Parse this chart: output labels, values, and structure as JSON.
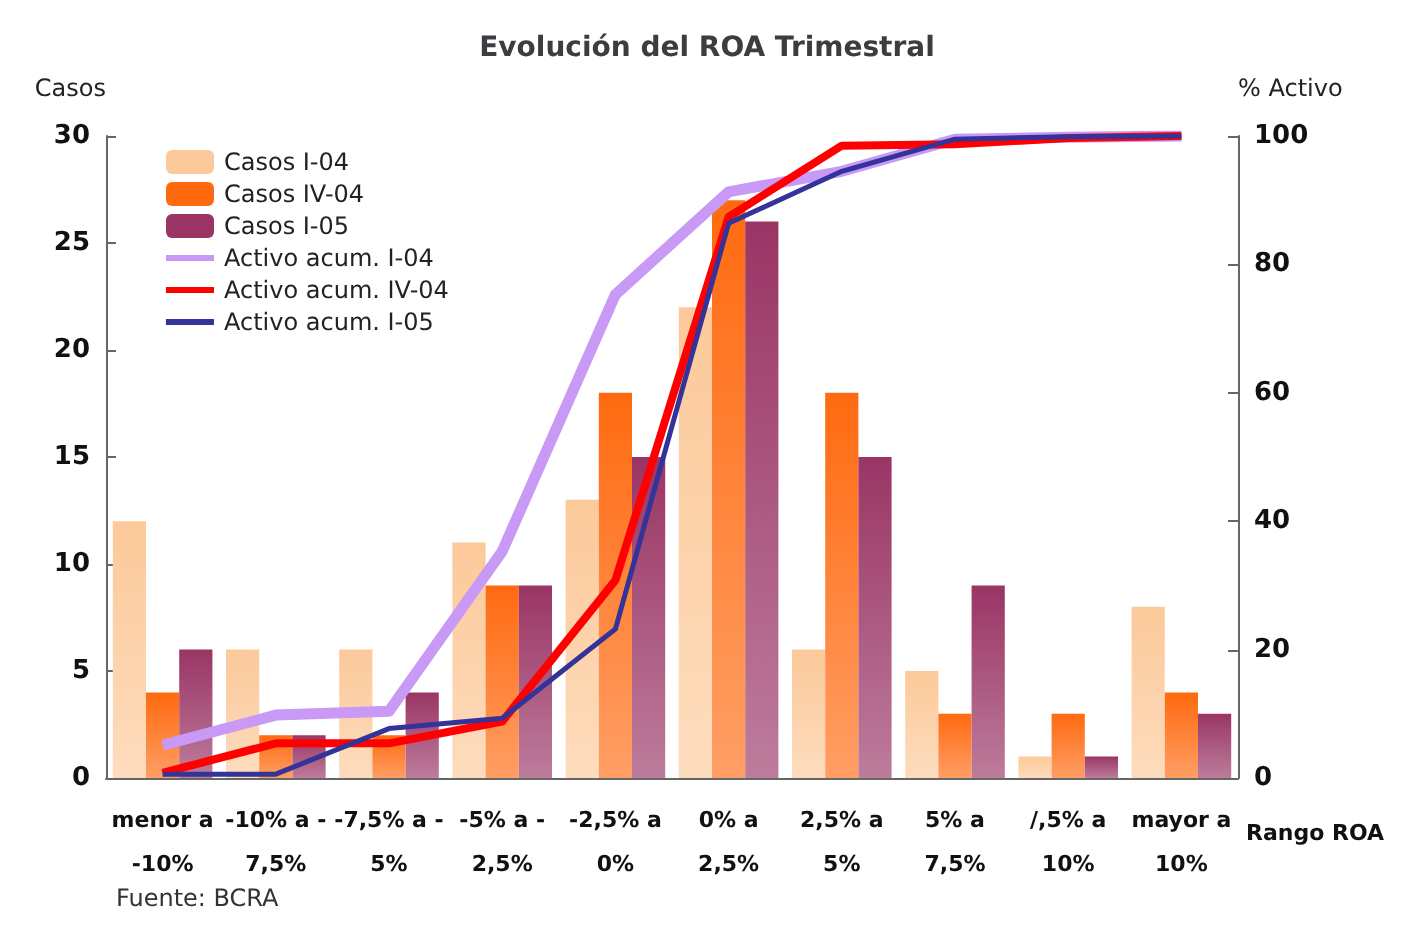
{
  "chart_data": {
    "type": "bar",
    "title": "Evolución del ROA Trimestral",
    "xlabel": "Rango ROA",
    "ylabel": "Casos",
    "y2label": "% Activo",
    "categories": [
      "menor a\n-10%",
      "-10% a -\n7,5%",
      "-7,5% a -\n5%",
      "-5% a -\n2,5%",
      "-2,5% a\n0%",
      "0% a\n2,5%",
      "2,5% a\n5%",
      "5% a\n7,5%",
      "/,5% a\n10%",
      "mayor a\n10%"
    ],
    "series": [
      {
        "name": "Casos I-04",
        "color": "#fcc99a",
        "values": [
          12,
          6,
          6,
          11,
          13,
          22,
          6,
          5,
          1,
          8
        ]
      },
      {
        "name": "Casos IV-04",
        "color": "#ff6a10",
        "values": [
          4,
          2,
          2,
          9,
          18,
          27,
          18,
          3,
          3,
          4
        ]
      },
      {
        "name": "Casos I-05",
        "color": "#9a3565",
        "values": [
          6,
          2,
          4,
          9,
          15,
          26,
          15,
          9,
          1,
          3
        ]
      },
      {
        "name": "Activo acum. I-04",
        "type": "line",
        "axis": "y2",
        "color": "#c99af5",
        "values": [
          5.1,
          9.8,
          10.4,
          35.3,
          75.3,
          91.3,
          94.5,
          99.5,
          99.8,
          100
        ]
      },
      {
        "name": "Activo acum. IV-04",
        "type": "line",
        "axis": "y2",
        "color": "#ff0000",
        "values": [
          0.8,
          5.4,
          5.4,
          8.8,
          30.8,
          87.4,
          98.5,
          98.7,
          99.7,
          100
        ]
      },
      {
        "name": "Activo acum. I-05",
        "type": "line",
        "axis": "y2",
        "color": "#333399",
        "values": [
          0.6,
          0.6,
          7.7,
          9.3,
          23.2,
          86.4,
          94.5,
          99.5,
          99.9,
          100
        ]
      }
    ],
    "ylim": [
      0,
      30
    ],
    "yticks": [
      0,
      5,
      10,
      15,
      20,
      25,
      30
    ],
    "y2lim": [
      0,
      100
    ],
    "y2ticks": [
      0,
      20,
      40,
      60,
      80,
      100
    ],
    "grid": false,
    "legend": "top left",
    "marker": "none",
    "annotations": [
      "Fuente: BCRA"
    ]
  }
}
